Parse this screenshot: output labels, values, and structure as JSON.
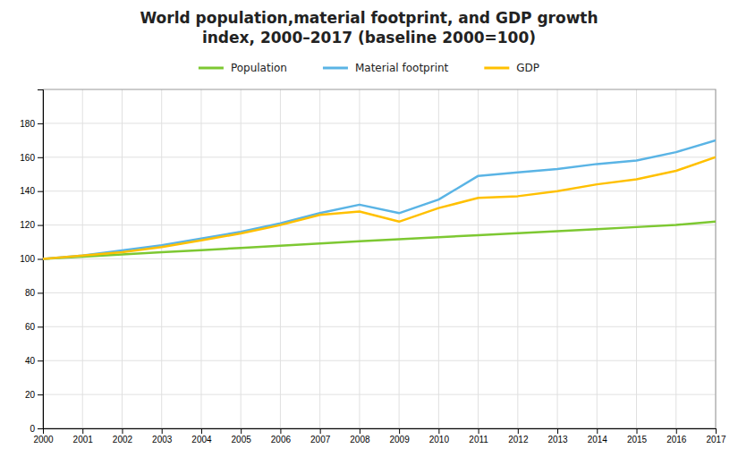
{
  "chart_data": {
    "type": "line",
    "title": "World population,material footprint, and GDP growth",
    "subtitle": "index, 2000–2017 (baseline 2000=100)",
    "x": [
      2000,
      2001,
      2002,
      2003,
      2004,
      2005,
      2006,
      2007,
      2008,
      2009,
      2010,
      2011,
      2012,
      2013,
      2014,
      2015,
      2016,
      2017
    ],
    "series": [
      {
        "name": "Population",
        "color": "#7dc832",
        "values": [
          100,
          101.3,
          102.6,
          103.9,
          105.2,
          106.5,
          107.8,
          109.1,
          110.4,
          111.6,
          112.8,
          114.0,
          115.2,
          116.4,
          117.6,
          118.8,
          120.1,
          122.0
        ]
      },
      {
        "name": "Material footprint",
        "color": "#5ab4e5",
        "values": [
          100,
          102,
          105,
          108,
          112,
          116,
          121,
          127,
          132,
          127,
          135,
          149,
          151,
          153,
          156,
          158,
          163,
          170
        ]
      },
      {
        "name": "GDP",
        "color": "#ffc000",
        "values": [
          100,
          102,
          104,
          107,
          111,
          115,
          120,
          126,
          128,
          122,
          130,
          136,
          137,
          140,
          144,
          147,
          152,
          160
        ]
      }
    ],
    "xlim": [
      2000,
      2017
    ],
    "xticks": [
      2000,
      2001,
      2002,
      2003,
      2004,
      2005,
      2006,
      2007,
      2008,
      2009,
      2010,
      2011,
      2012,
      2013,
      2014,
      2015,
      2016,
      2017
    ],
    "ylim": [
      0,
      200
    ],
    "yticks": [
      0,
      20,
      40,
      60,
      80,
      100,
      120,
      140,
      160,
      180
    ],
    "grid": true,
    "legend": "top"
  }
}
